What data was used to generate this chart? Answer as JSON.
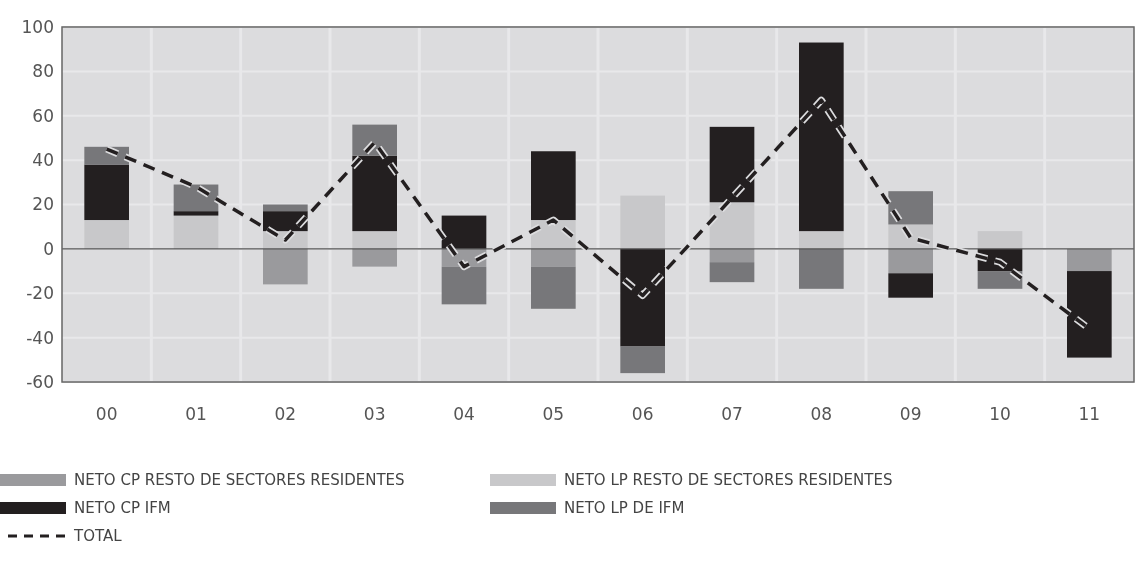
{
  "chart_data": {
    "type": "bar",
    "stacked": true,
    "categories": [
      "00",
      "01",
      "02",
      "03",
      "04",
      "05",
      "06",
      "07",
      "08",
      "09",
      "10",
      "11"
    ],
    "series": [
      {
        "name": "NETO CP RESTO DE SECTORES RESIDENTES",
        "color": "#9a9a9d",
        "values": [
          0,
          0,
          -16,
          -8,
          -8,
          -8,
          0,
          -6,
          0,
          -11,
          0,
          -10
        ]
      },
      {
        "name": "NETO LP RESTO DE SECTORES RESIDENTES",
        "color": "#c8c8ca",
        "values": [
          13,
          15,
          8,
          8,
          null,
          13,
          24,
          21,
          8,
          11,
          8,
          0
        ]
      },
      {
        "name": "NETO CP IFM",
        "color": "#231f20",
        "values": [
          25,
          2,
          9,
          34,
          15,
          31,
          -44,
          34,
          85,
          -11,
          -10,
          -39
        ]
      },
      {
        "name": "NETO LP DE IFM",
        "color": "#77777a",
        "values": [
          8,
          12,
          3,
          14,
          -17,
          -19,
          -12,
          -9,
          -18,
          15,
          -8,
          0
        ]
      },
      {
        "name": "TOTAL",
        "type": "line",
        "color": "#231f20",
        "line_style": "dashed",
        "values": [
          45,
          28,
          4,
          48,
          -8,
          13,
          -21,
          23,
          67,
          5,
          -6,
          -36
        ]
      }
    ],
    "ylim": [
      -60,
      100
    ],
    "yticks": [
      -60,
      -40,
      -20,
      0,
      20,
      40,
      60,
      80,
      100
    ],
    "grid": true,
    "legend": "bottom"
  }
}
